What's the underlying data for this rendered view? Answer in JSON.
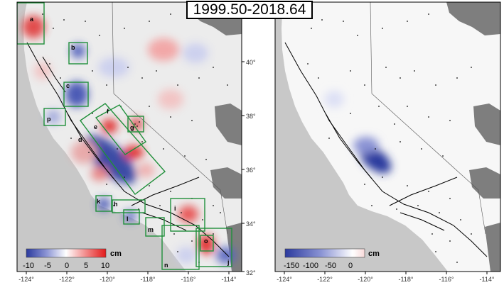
{
  "title": "1999.50-2018.64",
  "colors": {
    "land": "#ececec",
    "sea": "#c8c8c8",
    "nodata": "#7e7e7e",
    "subsidence": "#3a4db0",
    "uplift": "#e83a3a",
    "box": "#1f8f3a",
    "station": "#111111",
    "fault": "#000000"
  },
  "left_panel": {
    "x_ticks": [
      "-124°",
      "-122°",
      "-120°",
      "-118°",
      "-116°",
      "-114°"
    ],
    "y_ticks": [
      "40°",
      "38°",
      "36°",
      "34°",
      "32°"
    ],
    "colorbar": {
      "ticks": [
        "-10",
        "-5",
        "0",
        "5",
        "10"
      ],
      "unit": "cm",
      "range": [
        -10,
        10
      ]
    },
    "regions": [
      "a",
      "b",
      "c",
      "p",
      "d",
      "e",
      "f",
      "g",
      "h",
      "i",
      "k",
      "l",
      "m",
      "n",
      "o",
      "j"
    ]
  },
  "right_panel": {
    "x_ticks": [
      "-124°",
      "-122°",
      "-120°",
      "-118°",
      "-116°",
      "-114°"
    ],
    "colorbar": {
      "ticks": [
        "-150",
        "-100",
        "-50",
        "0"
      ],
      "unit": "cm",
      "range": [
        -175,
        20
      ]
    }
  }
}
